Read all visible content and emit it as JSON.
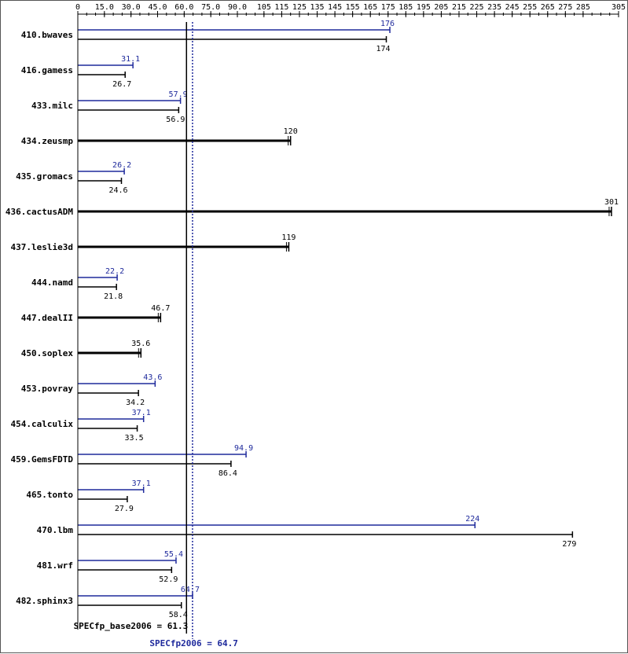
{
  "chart_data": {
    "type": "bar",
    "xlim": [
      0,
      305
    ],
    "tick_labels": [
      "0",
      "15.0",
      "30.0",
      "45.0",
      "60.0",
      "75.0",
      "90.0",
      "105",
      "115",
      "125",
      "135",
      "145",
      "155",
      "165",
      "175",
      "185",
      "195",
      "205",
      "215",
      "225",
      "235",
      "245",
      "255",
      "265",
      "275",
      "285",
      "305"
    ],
    "tick_values": [
      0,
      15,
      30,
      45,
      60,
      75,
      90,
      105,
      115,
      125,
      135,
      145,
      155,
      165,
      175,
      185,
      195,
      205,
      215,
      225,
      235,
      245,
      255,
      265,
      275,
      285,
      305
    ],
    "colors": {
      "peak": "#1f2a9c",
      "base": "#000000"
    },
    "benchmarks": [
      {
        "name": "410.bwaves",
        "peak": 176,
        "peak_label": "176",
        "base": 174,
        "base_label": "174"
      },
      {
        "name": "416.gamess",
        "peak": 31.1,
        "peak_label": "31.1",
        "base": 26.7,
        "base_label": "26.7"
      },
      {
        "name": "433.milc",
        "peak": 57.9,
        "peak_label": "57.9",
        "base": 56.9,
        "base_label": "56.9"
      },
      {
        "name": "434.zeusmp",
        "combined": 120,
        "combined_label": "120"
      },
      {
        "name": "435.gromacs",
        "peak": 26.2,
        "peak_label": "26.2",
        "base": 24.6,
        "base_label": "24.6"
      },
      {
        "name": "436.cactusADM",
        "combined": 301,
        "combined_label": "301"
      },
      {
        "name": "437.leslie3d",
        "combined": 119,
        "combined_label": "119"
      },
      {
        "name": "444.namd",
        "peak": 22.2,
        "peak_label": "22.2",
        "base": 21.8,
        "base_label": "21.8"
      },
      {
        "name": "447.dealII",
        "combined": 46.7,
        "combined_label": "46.7"
      },
      {
        "name": "450.soplex",
        "combined": 35.6,
        "combined_label": "35.6"
      },
      {
        "name": "453.povray",
        "peak": 43.6,
        "peak_label": "43.6",
        "base": 34.2,
        "base_label": "34.2"
      },
      {
        "name": "454.calculix",
        "peak": 37.1,
        "peak_label": "37.1",
        "base": 33.5,
        "base_label": "33.5"
      },
      {
        "name": "459.GemsFDTD",
        "peak": 94.9,
        "peak_label": "94.9",
        "base": 86.4,
        "base_label": "86.4"
      },
      {
        "name": "465.tonto",
        "peak": 37.1,
        "peak_label": "37.1",
        "base": 27.9,
        "base_label": "27.9"
      },
      {
        "name": "470.lbm",
        "peak": 224,
        "peak_label": "224",
        "base": 279,
        "base_label": "279"
      },
      {
        "name": "481.wrf",
        "peak": 55.4,
        "peak_label": "55.4",
        "base": 52.9,
        "base_label": "52.9"
      },
      {
        "name": "482.sphinx3",
        "peak": 64.7,
        "peak_label": "64.7",
        "base": 58.4,
        "base_label": "58.4"
      }
    ],
    "summary": {
      "base_value": 61.3,
      "base_text": "SPECfp_base2006 = 61.3",
      "peak_value": 64.7,
      "peak_text": "SPECfp2006 = 64.7"
    }
  }
}
